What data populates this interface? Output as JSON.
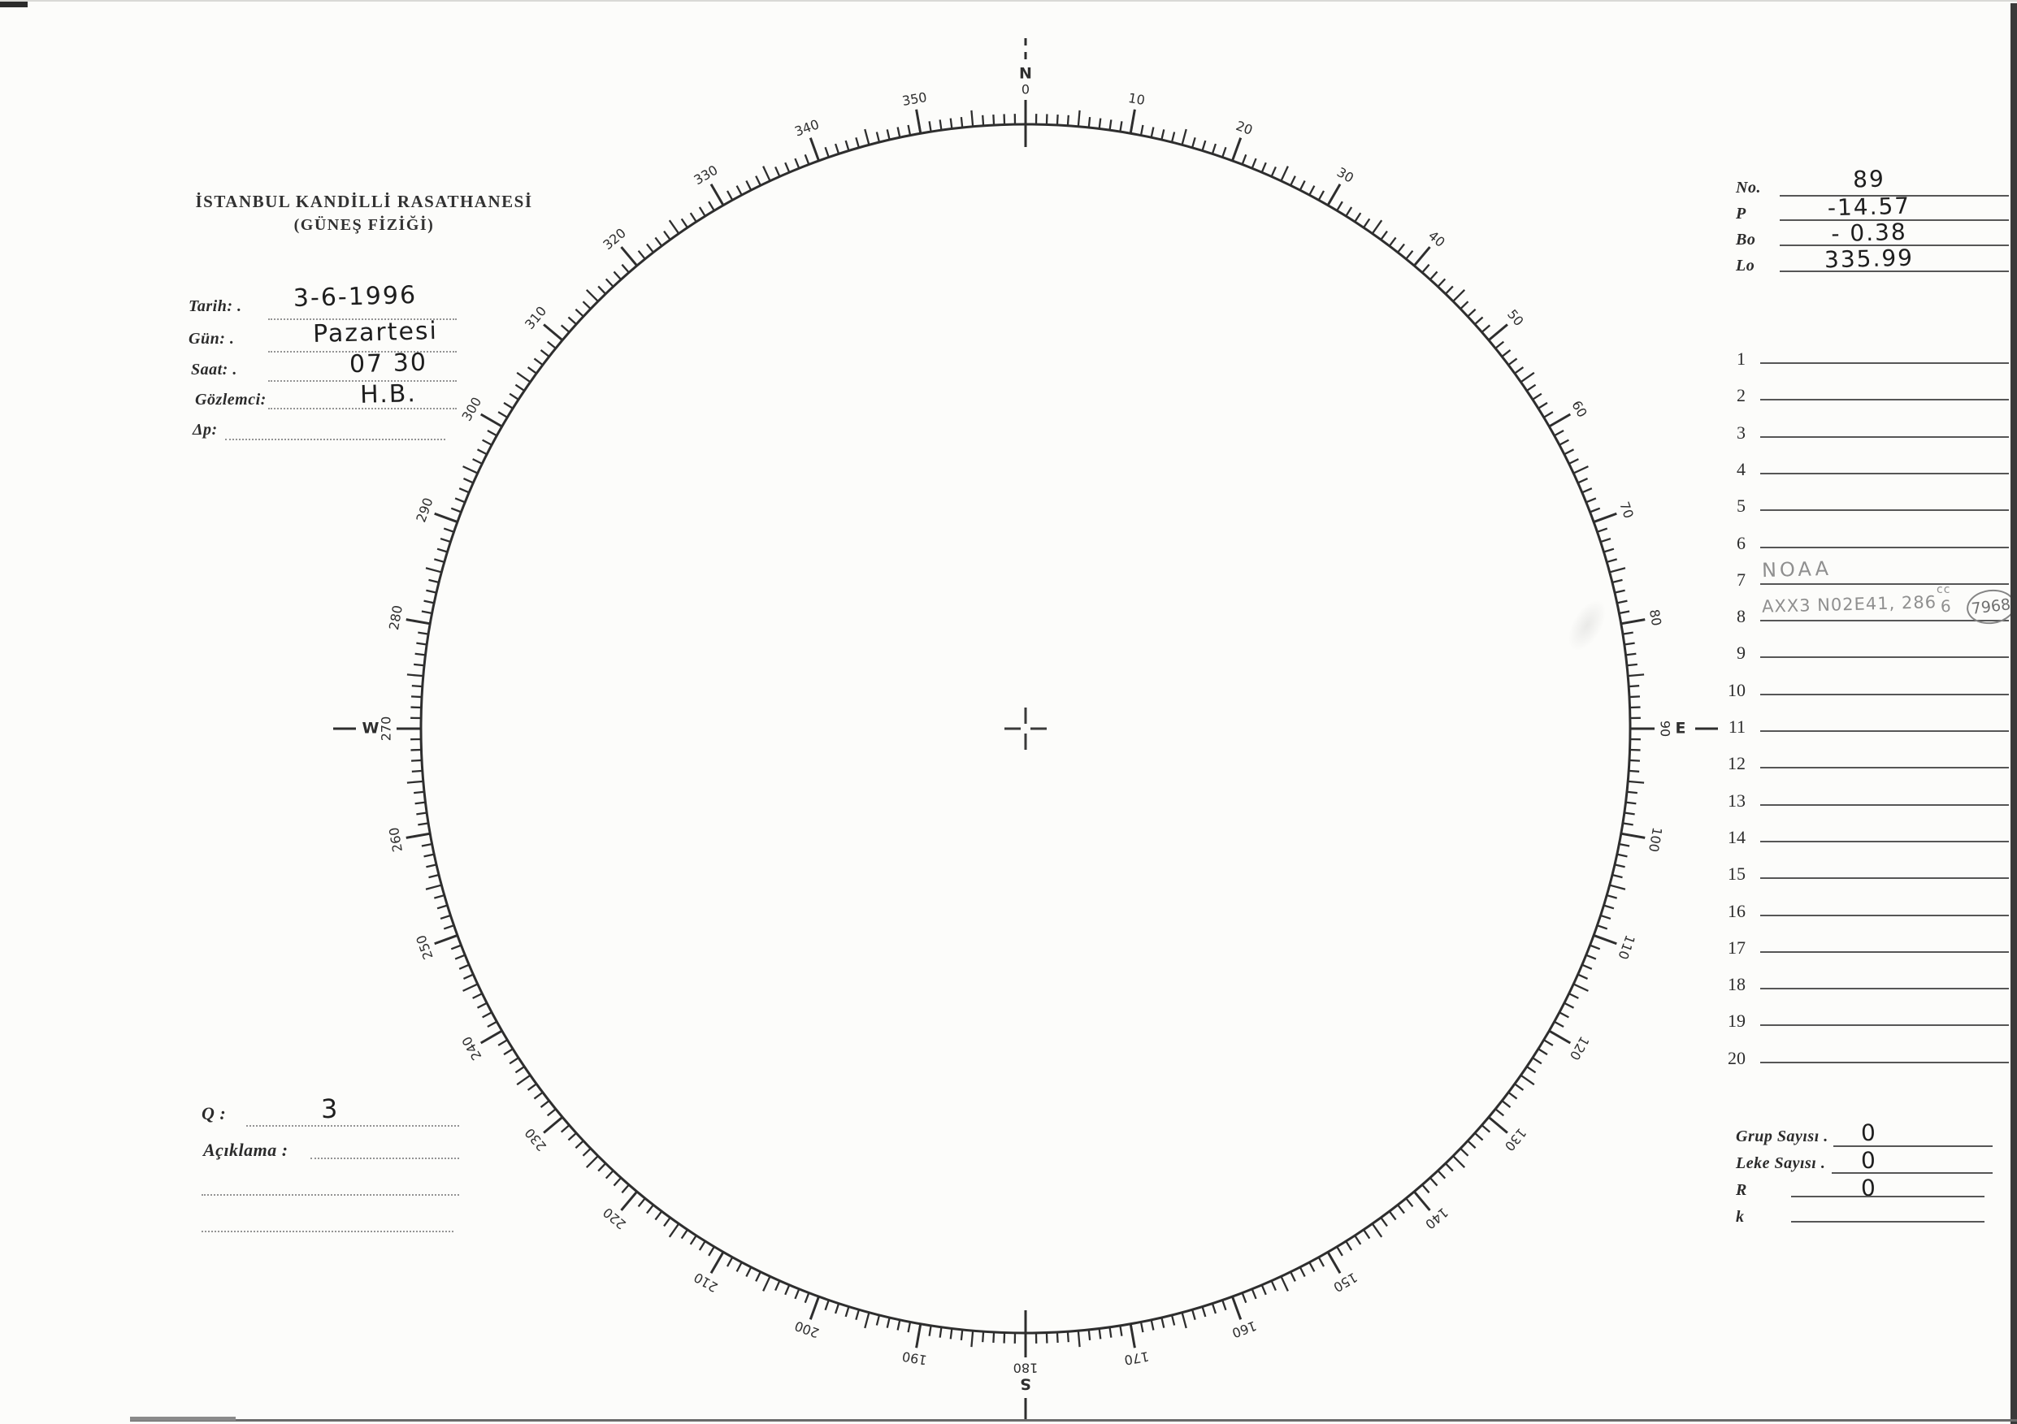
{
  "header": {
    "title": "İSTANBUL KANDİLLİ RASATHANESİ",
    "subtitle": "(GÜNEŞ FİZİĞİ)"
  },
  "meta_fields": [
    {
      "label": "Tarih: .",
      "value": "3-6-1996"
    },
    {
      "label": "Gün: .",
      "value": "Pazartesi"
    },
    {
      "label": "Saat: .",
      "value": "07 30"
    },
    {
      "label": "Gözlemci:",
      "value": "H.B."
    },
    {
      "label": "Δp:",
      "value": ""
    }
  ],
  "ephemeris_fields": [
    {
      "label": "No.",
      "value": "89"
    },
    {
      "label": "P",
      "value": "-14.57"
    },
    {
      "label": "Bo",
      "value": "- 0.38"
    },
    {
      "label": "Lo",
      "value": "335.99"
    }
  ],
  "region_list": {
    "rows": [
      {
        "n": "1",
        "text": ""
      },
      {
        "n": "2",
        "text": ""
      },
      {
        "n": "3",
        "text": ""
      },
      {
        "n": "4",
        "text": ""
      },
      {
        "n": "5",
        "text": ""
      },
      {
        "n": "6",
        "text": ""
      },
      {
        "n": "7",
        "text": "NOAA"
      },
      {
        "n": "8",
        "text": "AXX3  N02E41, 286",
        "sup": "cc",
        "sup_base": "6",
        "circled": "7968"
      },
      {
        "n": "9",
        "text": ""
      },
      {
        "n": "10",
        "text": ""
      },
      {
        "n": "11",
        "text": ""
      },
      {
        "n": "12",
        "text": ""
      },
      {
        "n": "13",
        "text": ""
      },
      {
        "n": "14",
        "text": ""
      },
      {
        "n": "15",
        "text": ""
      },
      {
        "n": "16",
        "text": ""
      },
      {
        "n": "17",
        "text": ""
      },
      {
        "n": "18",
        "text": ""
      },
      {
        "n": "19",
        "text": ""
      },
      {
        "n": "20",
        "text": ""
      }
    ]
  },
  "quality": {
    "label": "Q :",
    "value": "3"
  },
  "notes": {
    "label": "Açıklama :"
  },
  "counts_fields": [
    {
      "label": "Grup Sayısı .",
      "value": "0"
    },
    {
      "label": "Leke Sayısı .",
      "value": "0"
    },
    {
      "label": "R",
      "value": "0"
    },
    {
      "label": "k",
      "value": ""
    }
  ],
  "dial": {
    "ink": "#2e2e2e",
    "minor_step": 1,
    "medium_step": 5,
    "major_step": 10,
    "degree_labels": [
      {
        "deg": 0,
        "text": "0"
      },
      {
        "deg": 10,
        "text": "10"
      },
      {
        "deg": 20,
        "text": "20"
      },
      {
        "deg": 30,
        "text": "30"
      },
      {
        "deg": 40,
        "text": "40"
      },
      {
        "deg": 50,
        "text": "50"
      },
      {
        "deg": 60,
        "text": "60"
      },
      {
        "deg": 70,
        "text": "70"
      },
      {
        "deg": 80,
        "text": "80"
      },
      {
        "deg": 90,
        "text": "90"
      },
      {
        "deg": 100,
        "text": "100"
      },
      {
        "deg": 110,
        "text": "110"
      },
      {
        "deg": 120,
        "text": "120"
      },
      {
        "deg": 130,
        "text": "130"
      },
      {
        "deg": 140,
        "text": "140"
      },
      {
        "deg": 150,
        "text": "150"
      },
      {
        "deg": 160,
        "text": "160"
      },
      {
        "deg": 170,
        "text": "170"
      },
      {
        "deg": 180,
        "text": "180"
      },
      {
        "deg": 190,
        "text": "190"
      },
      {
        "deg": 200,
        "text": "200"
      },
      {
        "deg": 210,
        "text": "210"
      },
      {
        "deg": 220,
        "text": "220"
      },
      {
        "deg": 230,
        "text": "230"
      },
      {
        "deg": 240,
        "text": "240"
      },
      {
        "deg": 250,
        "text": "250"
      },
      {
        "deg": 260,
        "text": "260"
      },
      {
        "deg": 270,
        "text": "270"
      },
      {
        "deg": 280,
        "text": "280"
      },
      {
        "deg": 290,
        "text": "290"
      },
      {
        "deg": 300,
        "text": "300"
      },
      {
        "deg": 310,
        "text": "310"
      },
      {
        "deg": 320,
        "text": "320"
      },
      {
        "deg": 330,
        "text": "330"
      },
      {
        "deg": 340,
        "text": "340"
      },
      {
        "deg": 350,
        "text": "350"
      }
    ],
    "cardinals": [
      {
        "deg": 0,
        "letter": "N"
      },
      {
        "deg": 90,
        "letter": "E"
      },
      {
        "deg": 180,
        "letter": "S"
      },
      {
        "deg": 270,
        "letter": "W"
      }
    ]
  }
}
